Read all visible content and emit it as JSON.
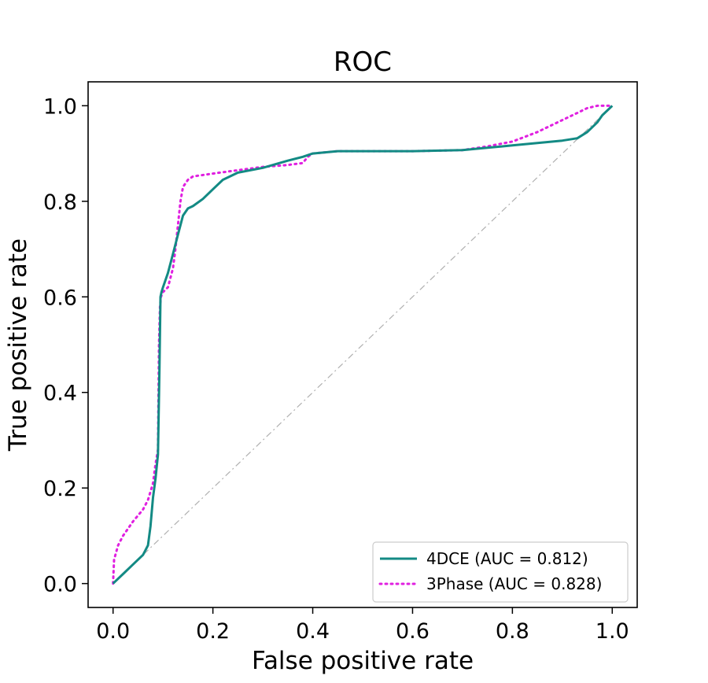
{
  "chart_data": {
    "type": "line",
    "title": "ROC",
    "xlabel": "False positive rate",
    "ylabel": "True positive rate",
    "xlim": [
      -0.05,
      1.05
    ],
    "ylim": [
      -0.05,
      1.05
    ],
    "xticks": [
      0.0,
      0.2,
      0.4,
      0.6,
      0.8,
      1.0
    ],
    "xtick_labels": [
      "0.0",
      "0.2",
      "0.4",
      "0.6",
      "0.8",
      "1.0"
    ],
    "yticks": [
      0.0,
      0.2,
      0.4,
      0.6,
      0.8,
      1.0
    ],
    "ytick_labels": [
      "0.0",
      "0.2",
      "0.4",
      "0.6",
      "0.8",
      "1.0"
    ],
    "grid": false,
    "legend_position": "lower-right",
    "reference_line": {
      "x": [
        0,
        1
      ],
      "y": [
        0,
        1
      ],
      "style": "dash-dot",
      "color": "#b0b0b0"
    },
    "series": [
      {
        "name": "4DCE (AUC = 0.812)",
        "color": "#138a84",
        "style": "solid",
        "x": [
          0.0,
          0.02,
          0.04,
          0.06,
          0.07,
          0.075,
          0.08,
          0.085,
          0.09,
          0.093,
          0.095,
          0.097,
          0.1,
          0.11,
          0.12,
          0.13,
          0.14,
          0.15,
          0.16,
          0.18,
          0.2,
          0.22,
          0.25,
          0.3,
          0.35,
          0.38,
          0.4,
          0.45,
          0.5,
          0.6,
          0.7,
          0.75,
          0.8,
          0.85,
          0.9,
          0.93,
          0.95,
          0.97,
          0.98,
          1.0
        ],
        "y": [
          0.0,
          0.02,
          0.04,
          0.06,
          0.08,
          0.12,
          0.18,
          0.22,
          0.27,
          0.45,
          0.6,
          0.61,
          0.62,
          0.65,
          0.69,
          0.73,
          0.77,
          0.785,
          0.79,
          0.805,
          0.825,
          0.845,
          0.86,
          0.87,
          0.885,
          0.893,
          0.9,
          0.905,
          0.905,
          0.905,
          0.907,
          0.912,
          0.917,
          0.922,
          0.927,
          0.932,
          0.945,
          0.965,
          0.98,
          1.0
        ]
      },
      {
        "name": "3Phase (AUC = 0.828)",
        "color": "#e020e0",
        "style": "dotted",
        "x": [
          0.0,
          0.002,
          0.01,
          0.02,
          0.04,
          0.06,
          0.07,
          0.08,
          0.085,
          0.09,
          0.092,
          0.094,
          0.096,
          0.1,
          0.11,
          0.115,
          0.12,
          0.125,
          0.13,
          0.135,
          0.14,
          0.15,
          0.16,
          0.2,
          0.25,
          0.3,
          0.35,
          0.38,
          0.39,
          0.4,
          0.45,
          0.5,
          0.6,
          0.7,
          0.75,
          0.8,
          0.85,
          0.88,
          0.9,
          0.93,
          0.95,
          0.97,
          1.0
        ],
        "y": [
          0.0,
          0.05,
          0.08,
          0.1,
          0.13,
          0.155,
          0.175,
          0.21,
          0.25,
          0.28,
          0.5,
          0.58,
          0.6,
          0.61,
          0.62,
          0.64,
          0.66,
          0.7,
          0.75,
          0.8,
          0.83,
          0.845,
          0.852,
          0.858,
          0.865,
          0.872,
          0.876,
          0.88,
          0.893,
          0.9,
          0.905,
          0.905,
          0.905,
          0.907,
          0.915,
          0.925,
          0.945,
          0.96,
          0.97,
          0.985,
          0.995,
          1.0,
          1.0
        ]
      }
    ]
  }
}
